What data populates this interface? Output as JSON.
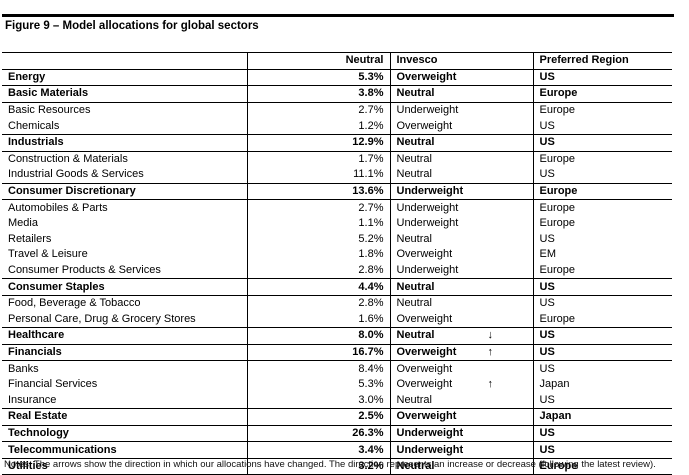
{
  "figure": {
    "title": "Figure 9 – Model allocations for global sectors",
    "note": "Notes: The arrows show the direction in which our allocations have changed. The direction represents an increase or decrease (following the latest review)."
  },
  "colors": {
    "text": "#000000",
    "background": "#ffffff",
    "border": "#000000"
  },
  "table": {
    "headers": [
      "",
      "Neutral",
      "Invesco",
      "Preferred Region"
    ],
    "rows": [
      {
        "sector": "Energy",
        "neutral": "5.3%",
        "invesco": "Overweight",
        "arrow": "",
        "region": "US",
        "bold": true,
        "sep": true
      },
      {
        "sector": "Basic Materials",
        "neutral": "3.8%",
        "invesco": "Neutral",
        "arrow": "",
        "region": "Europe",
        "bold": true,
        "sep": true
      },
      {
        "sector": "Basic Resources",
        "neutral": "2.7%",
        "invesco": "Underweight",
        "arrow": "",
        "region": "Europe",
        "bold": false,
        "sep": false
      },
      {
        "sector": "Chemicals",
        "neutral": "1.2%",
        "invesco": "Overweight",
        "arrow": "",
        "region": "US",
        "bold": false,
        "sep": true
      },
      {
        "sector": "Industrials",
        "neutral": "12.9%",
        "invesco": "Neutral",
        "arrow": "",
        "region": "US",
        "bold": true,
        "sep": true
      },
      {
        "sector": "Construction & Materials",
        "neutral": "1.7%",
        "invesco": "Neutral",
        "arrow": "",
        "region": "Europe",
        "bold": false,
        "sep": false
      },
      {
        "sector": "Industrial Goods & Services",
        "neutral": "11.1%",
        "invesco": "Neutral",
        "arrow": "",
        "region": "US",
        "bold": false,
        "sep": true
      },
      {
        "sector": "Consumer Discretionary",
        "neutral": "13.6%",
        "invesco": "Underweight",
        "arrow": "",
        "region": "Europe",
        "bold": true,
        "sep": true
      },
      {
        "sector": "Automobiles & Parts",
        "neutral": "2.7%",
        "invesco": "Underweight",
        "arrow": "",
        "region": "Europe",
        "bold": false,
        "sep": false
      },
      {
        "sector": "Media",
        "neutral": "1.1%",
        "invesco": "Underweight",
        "arrow": "",
        "region": "Europe",
        "bold": false,
        "sep": false
      },
      {
        "sector": "Retailers",
        "neutral": "5.2%",
        "invesco": "Neutral",
        "arrow": "",
        "region": "US",
        "bold": false,
        "sep": false
      },
      {
        "sector": "Travel & Leisure",
        "neutral": "1.8%",
        "invesco": "Overweight",
        "arrow": "",
        "region": "EM",
        "bold": false,
        "sep": false
      },
      {
        "sector": "Consumer Products & Services",
        "neutral": "2.8%",
        "invesco": "Underweight",
        "arrow": "",
        "region": "Europe",
        "bold": false,
        "sep": true
      },
      {
        "sector": "Consumer Staples",
        "neutral": "4.4%",
        "invesco": "Neutral",
        "arrow": "",
        "region": "US",
        "bold": true,
        "sep": true
      },
      {
        "sector": "Food, Beverage & Tobacco",
        "neutral": "2.8%",
        "invesco": "Neutral",
        "arrow": "",
        "region": "US",
        "bold": false,
        "sep": false
      },
      {
        "sector": "Personal Care, Drug & Grocery Stores",
        "neutral": "1.6%",
        "invesco": "Overweight",
        "arrow": "",
        "region": "Europe",
        "bold": false,
        "sep": true
      },
      {
        "sector": "Healthcare",
        "neutral": "8.0%",
        "invesco": "Neutral",
        "arrow": "↓",
        "region": "US",
        "bold": true,
        "sep": true
      },
      {
        "sector": "Financials",
        "neutral": "16.7%",
        "invesco": "Overweight",
        "arrow": "↑",
        "region": "US",
        "bold": true,
        "sep": true
      },
      {
        "sector": "Banks",
        "neutral": "8.4%",
        "invesco": "Overweight",
        "arrow": "",
        "region": "US",
        "bold": false,
        "sep": false
      },
      {
        "sector": "Financial Services",
        "neutral": "5.3%",
        "invesco": "Overweight",
        "arrow": "↑",
        "region": "Japan",
        "bold": false,
        "sep": false
      },
      {
        "sector": "Insurance",
        "neutral": "3.0%",
        "invesco": "Neutral",
        "arrow": "",
        "region": "US",
        "bold": false,
        "sep": true
      },
      {
        "sector": "Real Estate",
        "neutral": "2.5%",
        "invesco": "Overweight",
        "arrow": "",
        "region": "Japan",
        "bold": true,
        "sep": true
      },
      {
        "sector": "Technology",
        "neutral": "26.3%",
        "invesco": "Underweight",
        "arrow": "",
        "region": "US",
        "bold": true,
        "sep": true
      },
      {
        "sector": "Telecommunications",
        "neutral": "3.4%",
        "invesco": "Underweight",
        "arrow": "",
        "region": "US",
        "bold": true,
        "sep": true
      },
      {
        "sector": "Utilities",
        "neutral": "3.2%",
        "invesco": "Neutral",
        "arrow": "",
        "region": "Europe",
        "bold": true,
        "sep": true
      }
    ]
  }
}
